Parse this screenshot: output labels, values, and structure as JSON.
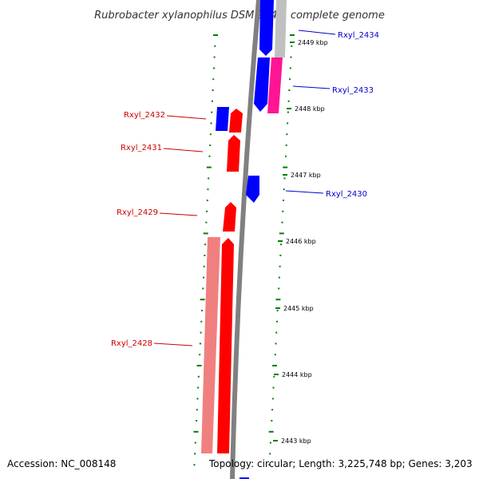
{
  "title": "Rubrobacter xylanophilus DSM 9941, complete genome",
  "footer": {
    "accession": "Accession: NC_008148",
    "topology": "Topology: circular; Length: 3,225,748 bp; Genes: 3,203"
  },
  "colors": {
    "forward_gene": "#ff0000",
    "forward_gene_light": "#f08080",
    "reverse_gene": "#0000ff",
    "magenta_gene": "#ff1493",
    "grey_gene": "#c0c0c0",
    "backbone": "#808080",
    "tick": "#008000",
    "label_red": "#cc0000",
    "label_blue": "#0000cc"
  },
  "scale_ticks": [
    {
      "label": "2449 kbp"
    },
    {
      "label": "2448 kbp"
    },
    {
      "label": "2447 kbp"
    },
    {
      "label": "2446 kbp"
    },
    {
      "label": "2445 kbp"
    },
    {
      "label": "2444 kbp"
    },
    {
      "label": "2443 kbp"
    }
  ],
  "gene_labels": [
    {
      "text": "Rxyl_2434",
      "strand": "reverse"
    },
    {
      "text": "Rxyl_2433",
      "strand": "reverse"
    },
    {
      "text": "Rxyl_2432",
      "strand": "forward"
    },
    {
      "text": "Rxyl_2431",
      "strand": "forward"
    },
    {
      "text": "Rxyl_2430",
      "strand": "reverse"
    },
    {
      "text": "Rxyl_2429",
      "strand": "forward"
    },
    {
      "text": "Rxyl_2428",
      "strand": "forward"
    }
  ]
}
